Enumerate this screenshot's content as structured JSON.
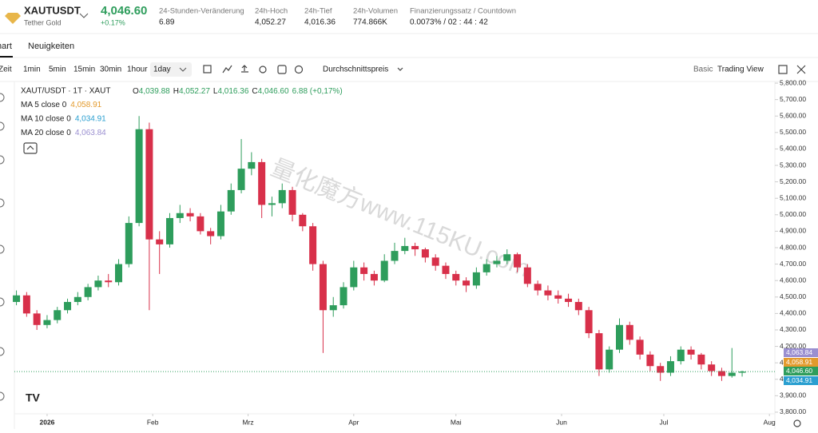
{
  "header": {
    "symbol": "XAUTUSDT",
    "name": "Tether Gold",
    "price": "4,046.60",
    "change": "+0.17%",
    "stats": [
      {
        "label": "24-Stunden-Veränderung",
        "value": "6.89"
      },
      {
        "label": "24h-Hoch",
        "value": "4,052.27"
      },
      {
        "label": "24h-Tief",
        "value": "4,016.36"
      },
      {
        "label": "24h-Volumen",
        "value": "774.866K"
      },
      {
        "label": "Finanzierungssatz / Countdown",
        "value": "0.0073% / 02 : 44 : 42"
      }
    ]
  },
  "tabs": [
    "hart",
    "Neuigkeiten"
  ],
  "toolbar": {
    "intervals": [
      "Zeit",
      "1min",
      "5min",
      "15min",
      "30min",
      "1hour",
      "1day"
    ],
    "price_type": "Durchschnittspreis",
    "modes": [
      "Basic",
      "Trading View"
    ]
  },
  "legend": {
    "title": "XAUT/USDT · 1T · XAUT",
    "ohlc": [
      {
        "key": "O",
        "value": "4,039.88"
      },
      {
        "key": "H",
        "value": "4,052.27"
      },
      {
        "key": "L",
        "value": "4,016.36"
      },
      {
        "key": "C",
        "value": "4,046.60"
      }
    ],
    "change": "6.88 (+0,17%)",
    "ma": [
      {
        "label": "MA 5 close 0",
        "value": "4,058.91",
        "color": "#e39a2c"
      },
      {
        "label": "MA 10 close 0",
        "value": "4,034.91",
        "color": "#2a9fd0"
      },
      {
        "label": "MA 20 close 0",
        "value": "4,063.84",
        "color": "#9a8fd0"
      }
    ]
  },
  "watermark": "量化魔方www.115KU.com",
  "chart_data": {
    "type": "candlestick",
    "up_color": "#2e9d5c",
    "down_color": "#d8304a",
    "x": [
      -9,
      -6,
      -3,
      0,
      3,
      6,
      9,
      12,
      15,
      18,
      21,
      24,
      27,
      30,
      33,
      36,
      39,
      42,
      45,
      48,
      51,
      54,
      57,
      60,
      63,
      66,
      69,
      72,
      75,
      78,
      81,
      84,
      87,
      90,
      93,
      96,
      99,
      102,
      105,
      108,
      111,
      114,
      117,
      120,
      123,
      126,
      129,
      132,
      135,
      138,
      141,
      144,
      147,
      150,
      153,
      156,
      159,
      162,
      165,
      168,
      171,
      174,
      177,
      180,
      183,
      186,
      189,
      192,
      195,
      198,
      201,
      204
    ],
    "open": [
      4470,
      4510,
      4400,
      4330,
      4360,
      4420,
      4470,
      4500,
      4560,
      4600,
      4590,
      4700,
      4950,
      5520,
      4850,
      4820,
      4980,
      5010,
      4990,
      4900,
      4870,
      5020,
      5150,
      5280,
      5320,
      5060,
      5070,
      5150,
      5000,
      4930,
      4700,
      4420,
      4450,
      4560,
      4680,
      4640,
      4600,
      4720,
      4780,
      4810,
      4790,
      4740,
      4690,
      4640,
      4600,
      4570,
      4650,
      4700,
      4720,
      4760,
      4680,
      4580,
      4540,
      4510,
      4490,
      4470,
      4420,
      4280,
      4060,
      4180,
      4330,
      4240,
      4150,
      4080,
      4040,
      4110,
      4180,
      4150,
      4090,
      4050,
      4020,
      4039.88
    ],
    "high": [
      4540,
      4530,
      4420,
      4390,
      4440,
      4490,
      4530,
      4580,
      4630,
      4640,
      4730,
      4990,
      5600,
      5560,
      4900,
      5010,
      5060,
      5040,
      5010,
      4920,
      5060,
      5190,
      5460,
      5380,
      5340,
      5110,
      5190,
      5170,
      5010,
      4950,
      4720,
      4500,
      4590,
      4720,
      4710,
      4660,
      4760,
      4830,
      4860,
      4830,
      4800,
      4760,
      4710,
      4660,
      4620,
      4680,
      4730,
      4750,
      4790,
      4770,
      4700,
      4600,
      4570,
      4540,
      4520,
      4490,
      4440,
      4300,
      4200,
      4370,
      4350,
      4260,
      4170,
      4100,
      4140,
      4200,
      4200,
      4160,
      4110,
      4070,
      4190,
      4052.27
    ],
    "low": [
      4450,
      4380,
      4300,
      4310,
      4340,
      4400,
      4450,
      4480,
      4540,
      4560,
      4570,
      4680,
      4930,
      4420,
      4640,
      4800,
      4950,
      4960,
      4880,
      4820,
      4850,
      5000,
      5130,
      5240,
      4980,
      4990,
      5040,
      4960,
      4900,
      4660,
      4160,
      4380,
      4430,
      4540,
      4600,
      4570,
      4590,
      4700,
      4760,
      4750,
      4710,
      4660,
      4610,
      4570,
      4530,
      4550,
      4630,
      4680,
      4700,
      4650,
      4560,
      4510,
      4480,
      4460,
      4440,
      4390,
      4250,
      4020,
      4040,
      4160,
      4210,
      4120,
      4050,
      3990,
      4020,
      4090,
      4120,
      4060,
      4020,
      3990,
      4010,
      4016.36
    ],
    "close": [
      4510,
      4400,
      4330,
      4360,
      4420,
      4470,
      4500,
      4560,
      4600,
      4590,
      4700,
      4950,
      5520,
      4850,
      4820,
      4980,
      5010,
      4990,
      4900,
      4870,
      5020,
      5150,
      5280,
      5320,
      5060,
      5070,
      5150,
      5000,
      4930,
      4700,
      4420,
      4450,
      4560,
      4680,
      4640,
      4600,
      4720,
      4780,
      4810,
      4790,
      4740,
      4690,
      4640,
      4600,
      4570,
      4650,
      4700,
      4720,
      4760,
      4680,
      4580,
      4540,
      4510,
      4490,
      4470,
      4420,
      4280,
      4060,
      4180,
      4330,
      4240,
      4150,
      4080,
      4040,
      4110,
      4180,
      4150,
      4090,
      4050,
      4020,
      4040,
      4046.6
    ],
    "xlim": [
      -9.6,
      213.6
    ],
    "xticks": [
      {
        "value": 0,
        "label": "2026"
      },
      {
        "value": 31,
        "label": "Feb"
      },
      {
        "value": 59,
        "label": "Mrz"
      },
      {
        "value": 90,
        "label": "Apr"
      },
      {
        "value": 120,
        "label": "Mai"
      },
      {
        "value": 151,
        "label": "Jun"
      },
      {
        "value": 181,
        "label": "Jul"
      },
      {
        "value": 212,
        "label": "Aug"
      }
    ],
    "ylim": [
      3790,
      5810
    ],
    "yticks": [
      {
        "value": 5800,
        "label": "5,800.00"
      },
      {
        "value": 5700,
        "label": "5,700.00"
      },
      {
        "value": 5600,
        "label": "5,600.00"
      },
      {
        "value": 5500,
        "label": "5,500.00"
      },
      {
        "value": 5400,
        "label": "5,400.00"
      },
      {
        "value": 5300,
        "label": "5,300.00"
      },
      {
        "value": 5200,
        "label": "5,200.00"
      },
      {
        "value": 5100,
        "label": "5,100.00"
      },
      {
        "value": 5000,
        "label": "5,000.00"
      },
      {
        "value": 4900,
        "label": "4,900.00"
      },
      {
        "value": 4800,
        "label": "4,800.00"
      },
      {
        "value": 4700,
        "label": "4,700.00"
      },
      {
        "value": 4600,
        "label": "4,600.00"
      },
      {
        "value": 4500,
        "label": "4,500.00"
      },
      {
        "value": 4400,
        "label": "4,400.00"
      },
      {
        "value": 4300,
        "label": "4,300.00"
      },
      {
        "value": 4200,
        "label": "4,200.00"
      },
      {
        "value": 4100,
        "label": "4,100.00"
      },
      {
        "value": 4000,
        "label": "4,000.00"
      },
      {
        "value": 3900,
        "label": "3,900.00"
      },
      {
        "value": 3800,
        "label": "3,800.00"
      }
    ],
    "price_badges": [
      {
        "value": 4063.84,
        "label": "4,063.84",
        "color": "#9a8fd0"
      },
      {
        "value": 4058.91,
        "label": "4,058.91",
        "color": "#e39a2c"
      },
      {
        "value": 4046.6,
        "label": "4,046.60",
        "color": "#2e9d5c"
      },
      {
        "value": 4034.91,
        "label": "4,034.91",
        "color": "#2a9fd0"
      }
    ]
  }
}
